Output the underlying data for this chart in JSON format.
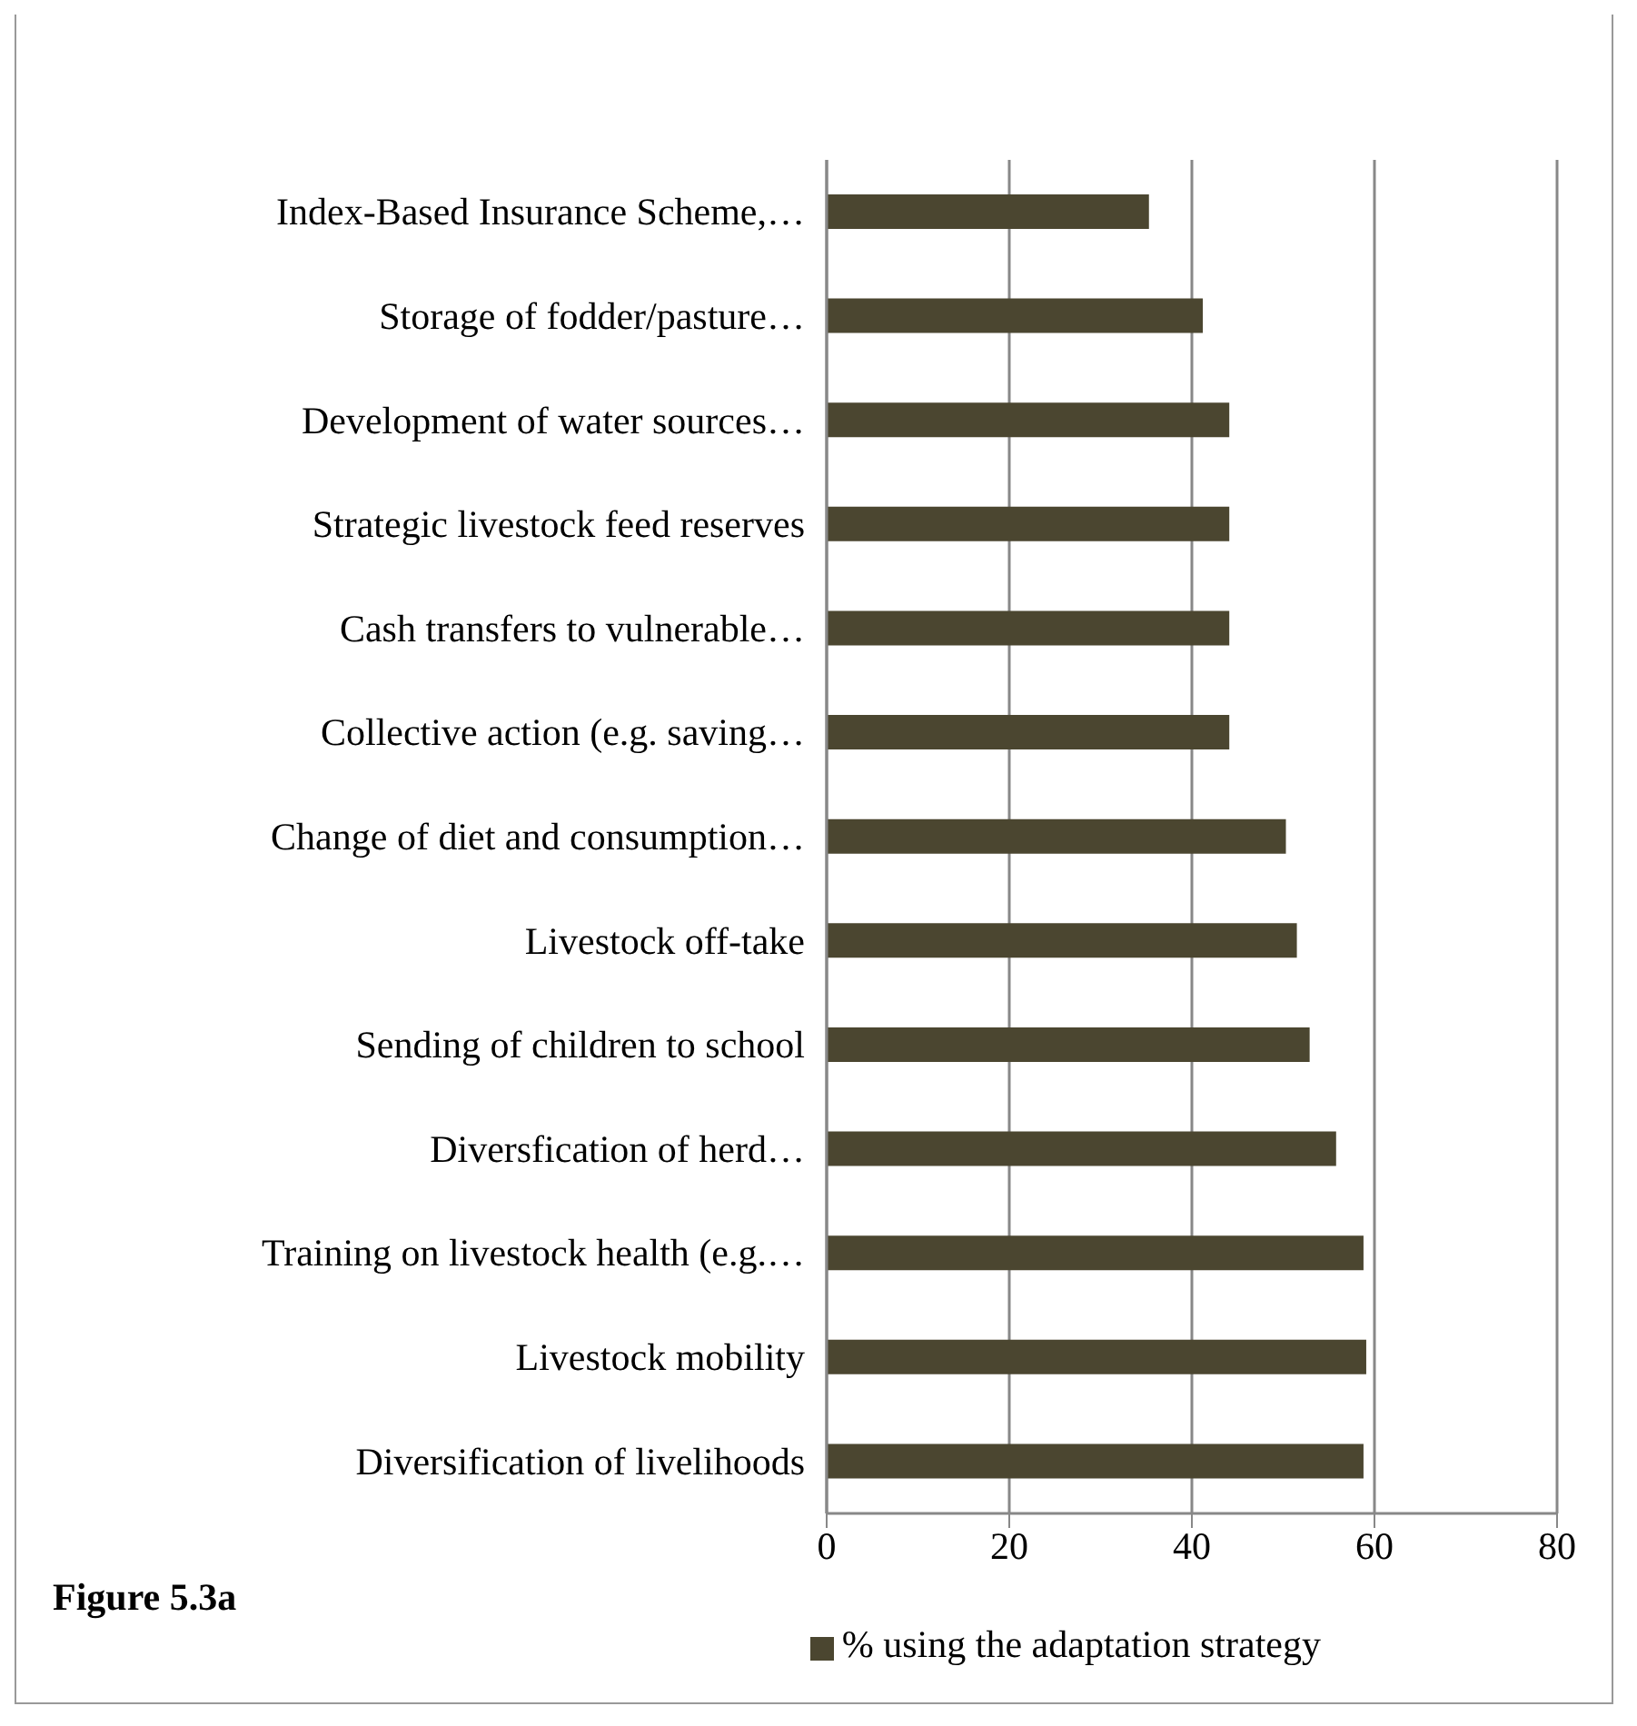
{
  "chart_data": {
    "type": "bar",
    "orientation": "horizontal",
    "title": "Figure 5.3a",
    "categories": [
      "Index-Based Insurance Scheme,…",
      "Storage of fodder/pasture…",
      "Development of water sources…",
      "Strategic livestock feed reserves",
      "Cash transfers to vulnerable…",
      "Collective action (e.g. saving…",
      "Change of diet and consumption…",
      "Livestock off-take",
      "Sending of children to school",
      "Diversfication of herd…",
      "Training on livestock health (e.g.…",
      "Livestock mobility",
      "Diversification of livelihoods"
    ],
    "series": [
      {
        "name": "% using the adaptation strategy",
        "color": "#4b4630",
        "values": [
          35.3,
          41.2,
          44.1,
          44.1,
          44.1,
          44.1,
          50.3,
          51.5,
          52.9,
          55.8,
          58.8,
          59.1,
          58.8
        ]
      }
    ],
    "xlim": [
      0,
      80
    ],
    "xticks": [
      0,
      20,
      40,
      60,
      80
    ],
    "grid": "x",
    "legend": "bottom"
  }
}
